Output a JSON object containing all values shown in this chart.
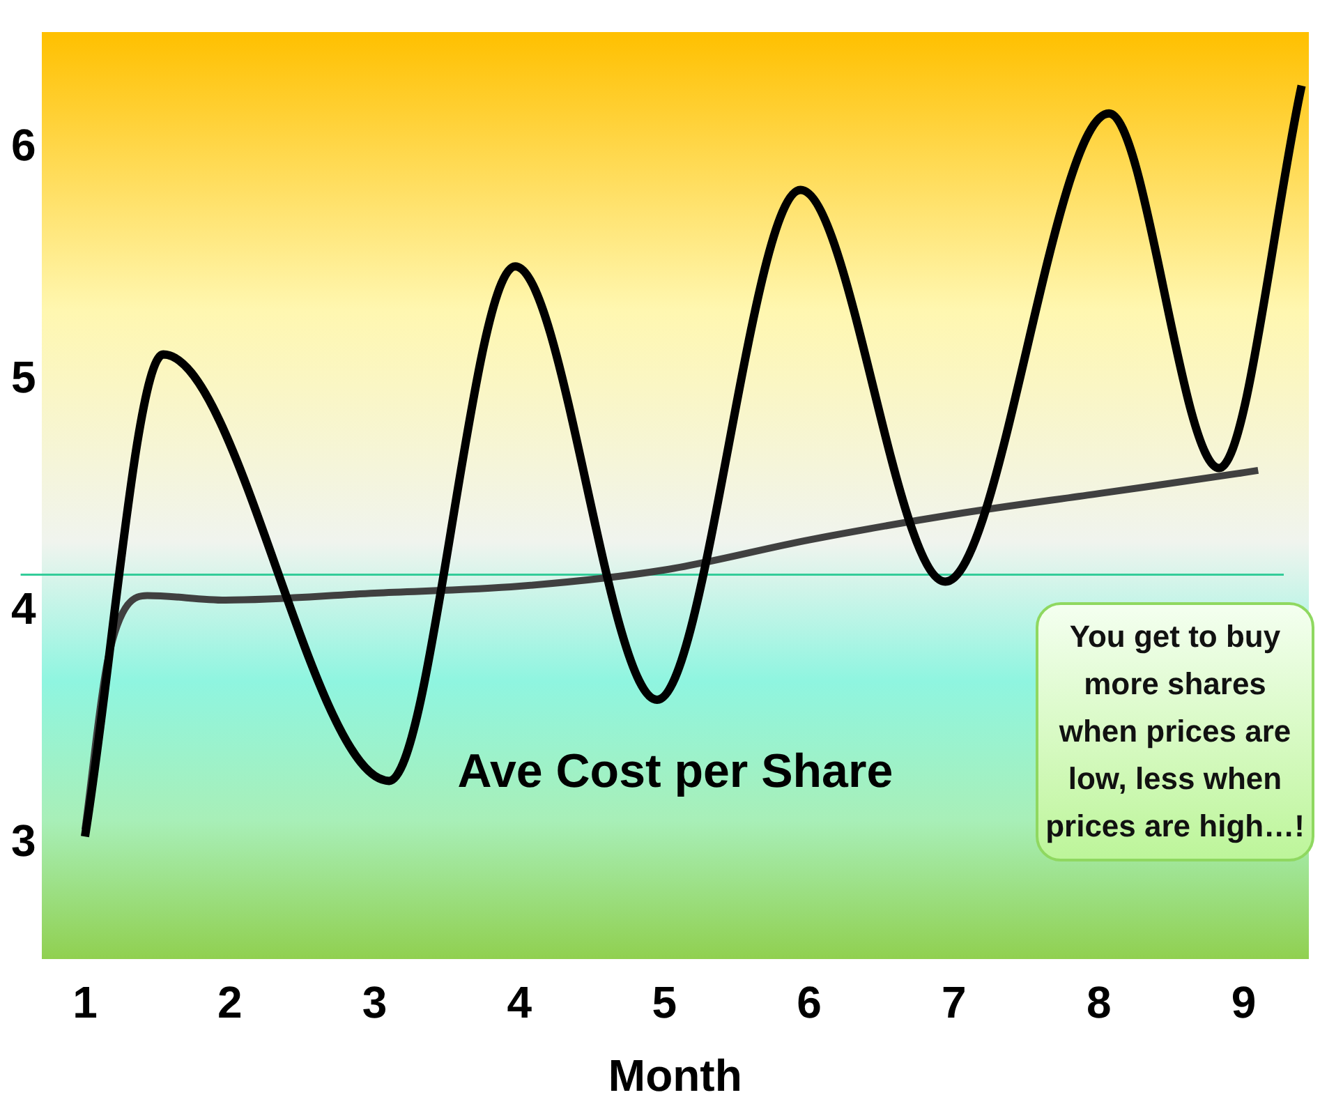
{
  "chart_data": {
    "type": "line",
    "xlabel": "Month",
    "xlim": [
      0.7,
      9.45
    ],
    "xticks": [
      1,
      2,
      3,
      4,
      5,
      6,
      7,
      8,
      9
    ],
    "ylim": [
      2.5,
      6.5
    ],
    "yticks": [
      3,
      4,
      5,
      6
    ],
    "series": [
      {
        "color": "#000000",
        "x": [
          1,
          1.54,
          3.1,
          3.97,
          4.95,
          5.94,
          6.94,
          8.07,
          8.83,
          9.4
        ],
        "values": [
          3.03,
          5.11,
          3.27,
          5.49,
          3.62,
          5.82,
          4.13,
          6.15,
          4.62,
          6.27
        ]
      },
      {
        "color": "#404040",
        "x": [
          1,
          1.16,
          1.43,
          1.97,
          3,
          4,
          5,
          6,
          7,
          8,
          9,
          9.1
        ],
        "values": [
          3.06,
          3.8,
          4.07,
          4.05,
          4.08,
          4.11,
          4.18,
          4.31,
          4.42,
          4.51,
          4.6,
          4.61
        ]
      }
    ],
    "ref_lines": [
      {
        "axis": "y",
        "value": 4.16,
        "color": "#33cc99"
      }
    ],
    "annotations": [
      "Ave Cost per Share",
      "You get to buy more shares when prices are low, less when prices are high…!"
    ],
    "grid": false,
    "legend": false,
    "marker": "none",
    "line_style": "solid"
  }
}
